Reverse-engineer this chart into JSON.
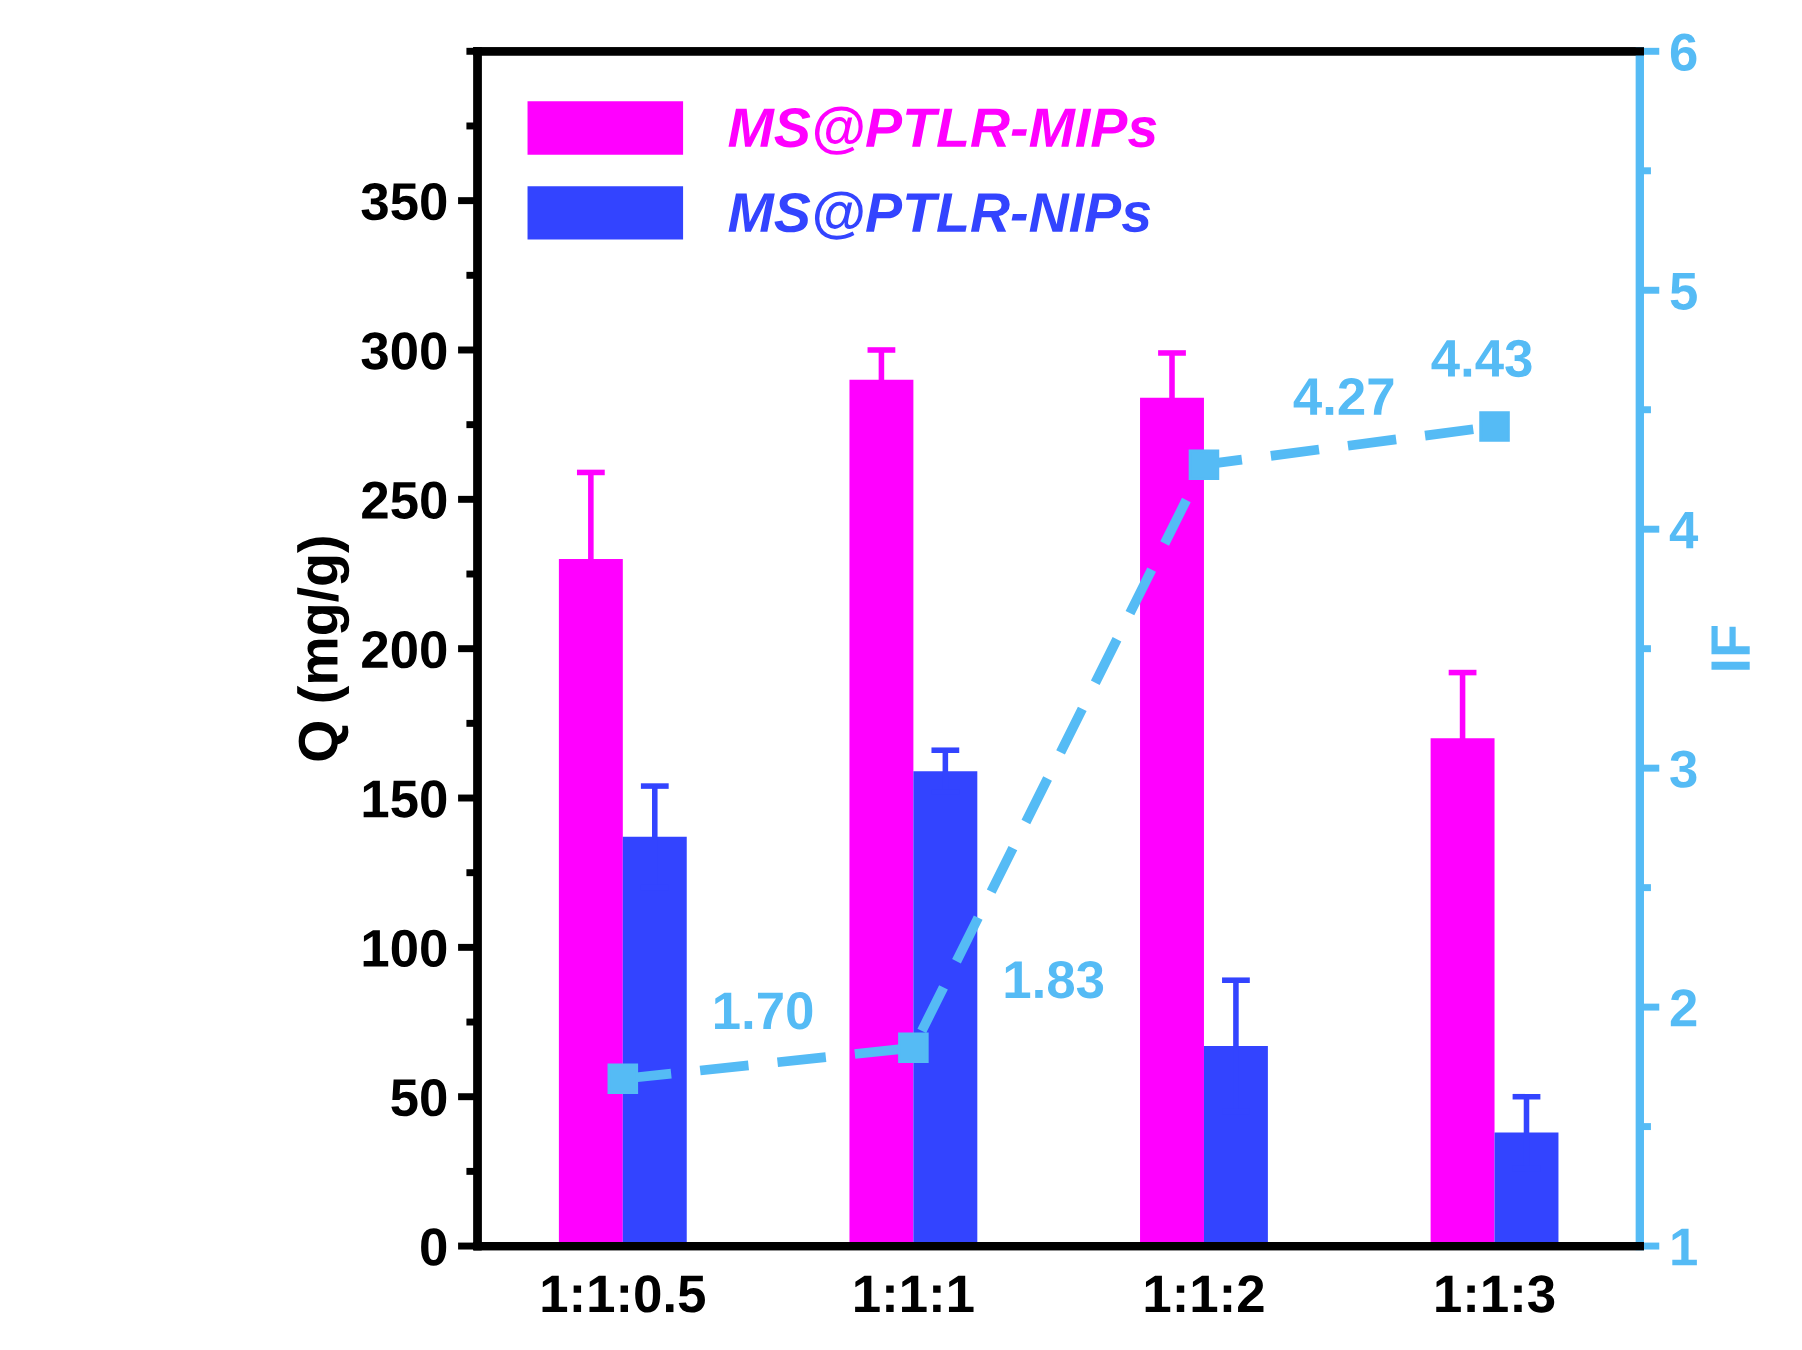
{
  "chart_data": {
    "type": "bar",
    "categories": [
      "1:1:0.5",
      "1:1:1",
      "1:1:2",
      "1:1:3"
    ],
    "ylabel": "Q (mg/g)",
    "y2label": "IF",
    "ylim": [
      0,
      400
    ],
    "yticks": [
      0,
      50,
      100,
      150,
      200,
      250,
      300,
      350
    ],
    "y2lim": [
      1,
      6
    ],
    "y2ticks": [
      1,
      2,
      3,
      4,
      5,
      6
    ],
    "series": [
      {
        "name": "MS@PTLR-MIPs",
        "color": "#ff00ff",
        "values": [
          230,
          290,
          284,
          170
        ],
        "errors": [
          29,
          10,
          15,
          22
        ]
      },
      {
        "name": "MS@PTLR-NIPs",
        "color": "#3344ff",
        "values": [
          137,
          159,
          67,
          38
        ],
        "errors": [
          17,
          7,
          22,
          12
        ]
      },
      {
        "type": "line",
        "axis": "y2",
        "color": "#55bbf5",
        "values": [
          1.7,
          1.83,
          4.27,
          4.43
        ],
        "value_labels": [
          "1.70",
          "1.83",
          "4.27",
          "4.43"
        ],
        "marker": "square",
        "line_style": "dashed"
      }
    ],
    "legend": "top left",
    "grid": false
  }
}
